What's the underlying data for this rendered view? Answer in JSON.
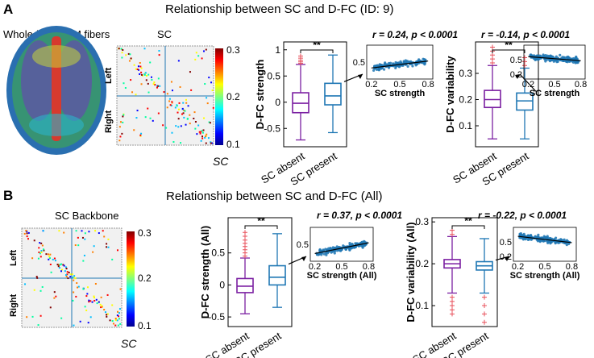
{
  "panel_a": {
    "letter": "A",
    "title": "Relationship between SC and D-FC (ID: 9)",
    "brain_label": "Whole-brain WM fibers",
    "matrix_title": "SC",
    "matrix_left": "Left",
    "matrix_right": "Right",
    "colorbar_label": "SC",
    "colorbar_ticks": [
      "0.3",
      "0.2",
      "0.1"
    ]
  },
  "panel_b": {
    "letter": "B",
    "title": "Relationship between SC and D-FC (All)",
    "matrix_title": "SC Backbone",
    "matrix_left": "Left",
    "matrix_right": "Right",
    "colorbar_label": "SC",
    "colorbar_ticks": [
      "0.3",
      "0.2",
      "0.1"
    ]
  },
  "chart_data": [
    {
      "type": "box",
      "id": "a-strength",
      "ylabel": "D-FC strength",
      "categories": [
        "SC absent",
        "SC present"
      ],
      "ylim": [
        -0.85,
        1.15
      ],
      "yticks": [
        -0.5,
        0,
        0.5,
        1
      ],
      "ytick_labels": [
        "-0.5",
        "0",
        "0.5",
        "1"
      ],
      "boxes": [
        {
          "name": "SC absent",
          "color": "#7b1fa2",
          "whisker_low": -0.72,
          "q1": -0.2,
          "median": -0.02,
          "q3": 0.18,
          "whisker_high": 0.72,
          "outliers_high": [
            0.74,
            0.77,
            0.8,
            0.84,
            0.88
          ]
        },
        {
          "name": "SC present",
          "color": "#1f77b4",
          "whisker_low": -0.58,
          "q1": -0.05,
          "median": 0.12,
          "q3": 0.36,
          "whisker_high": 0.9
        }
      ],
      "significance": "**",
      "stats": "r = 0.24, p < 0.0001",
      "inset": {
        "xlabel": "SC strength",
        "xticks": [
          "0.2",
          "0.5",
          "0.8"
        ],
        "yticks": [
          "0.5"
        ],
        "xlim": [
          0.15,
          0.85
        ],
        "ylim": [
          0.15,
          0.85
        ],
        "slope": 0.24,
        "intercept": 0.45
      }
    },
    {
      "type": "box",
      "id": "a-variability",
      "ylabel": "D-FC variability",
      "categories": [
        "SC absent",
        "SC present"
      ],
      "ylim": [
        0.02,
        0.42
      ],
      "yticks": [
        0.1,
        0.2,
        0.3
      ],
      "ytick_labels": [
        "0.1",
        "0.2",
        "0.3"
      ],
      "boxes": [
        {
          "name": "SC absent",
          "color": "#7b1fa2",
          "whisker_low": 0.05,
          "q1": 0.17,
          "median": 0.2,
          "q3": 0.235,
          "whisker_high": 0.33,
          "outliers_high": [
            0.34,
            0.355,
            0.37,
            0.385,
            0.4
          ]
        },
        {
          "name": "SC present",
          "color": "#1f77b4",
          "whisker_low": 0.05,
          "q1": 0.16,
          "median": 0.195,
          "q3": 0.225,
          "whisker_high": 0.32,
          "outliers_high": [
            0.33,
            0.345,
            0.36
          ]
        }
      ],
      "significance": "**",
      "stats": "r = -0.14, p < 0.0001",
      "inset": {
        "xlabel": "SC strength",
        "xticks": [
          "0.2",
          "0.5",
          "0.8"
        ],
        "yticks": [
          "0.5",
          "0.2"
        ],
        "xlim": [
          0.15,
          0.85
        ],
        "ylim": [
          0.1,
          0.8
        ],
        "slope": -0.14,
        "intercept": 0.52
      }
    },
    {
      "type": "box",
      "id": "b-strength",
      "ylabel": "D-FC strength (All)",
      "categories": [
        "SC absent",
        "SC present"
      ],
      "ylim": [
        -0.65,
        1.05
      ],
      "yticks": [
        -0.5,
        0,
        0.5
      ],
      "ytick_labels": [
        "-0.5",
        "0",
        "0.5"
      ],
      "boxes": [
        {
          "name": "SC absent",
          "color": "#7b1fa2",
          "whisker_low": -0.45,
          "q1": -0.12,
          "median": -0.02,
          "q3": 0.1,
          "whisker_high": 0.42,
          "outliers_high": [
            0.45,
            0.5,
            0.55,
            0.6,
            0.65,
            0.7,
            0.76,
            0.82
          ]
        },
        {
          "name": "SC present",
          "color": "#1f77b4",
          "whisker_low": -0.35,
          "q1": 0.0,
          "median": 0.12,
          "q3": 0.3,
          "whisker_high": 0.8
        }
      ],
      "significance": "**",
      "stats": "r = 0.37, p < 0.0001",
      "inset": {
        "xlabel": "SC strength (All)",
        "xticks": [
          "0.2",
          "0.5",
          "0.8"
        ],
        "yticks": [
          "0.5"
        ],
        "xlim": [
          0.15,
          0.85
        ],
        "ylim": [
          0.15,
          0.85
        ],
        "slope": 0.37,
        "intercept": 0.42
      }
    },
    {
      "type": "box",
      "id": "b-variability",
      "ylabel": "D-FC variability (All)",
      "categories": [
        "SC absent",
        "SC present"
      ],
      "ylim": [
        0.05,
        0.31
      ],
      "yticks": [
        0.1,
        0.2,
        0.3
      ],
      "ytick_labels": [
        "0.1",
        "0.2",
        "0.3"
      ],
      "boxes": [
        {
          "name": "SC absent",
          "color": "#7b1fa2",
          "whisker_low": 0.13,
          "q1": 0.19,
          "median": 0.2,
          "q3": 0.21,
          "whisker_high": 0.265,
          "outliers_low": [
            0.08,
            0.09,
            0.1,
            0.11,
            0.12
          ],
          "outliers_high": [
            0.27,
            0.28
          ]
        },
        {
          "name": "SC present",
          "color": "#1f77b4",
          "whisker_low": 0.13,
          "q1": 0.185,
          "median": 0.195,
          "q3": 0.205,
          "whisker_high": 0.26,
          "outliers_low": [
            0.06,
            0.08,
            0.1,
            0.12
          ]
        }
      ],
      "significance": "**",
      "stats": "r = -0.22, p < 0.0001",
      "inset": {
        "xlabel": "SC strength (All)",
        "xticks": [
          "0.2",
          "0.5",
          "0.8"
        ],
        "yticks": [
          "0.5",
          "0.2"
        ],
        "xlim": [
          0.15,
          0.85
        ],
        "ylim": [
          0.1,
          0.8
        ],
        "slope": -0.22,
        "intercept": 0.55
      }
    }
  ]
}
